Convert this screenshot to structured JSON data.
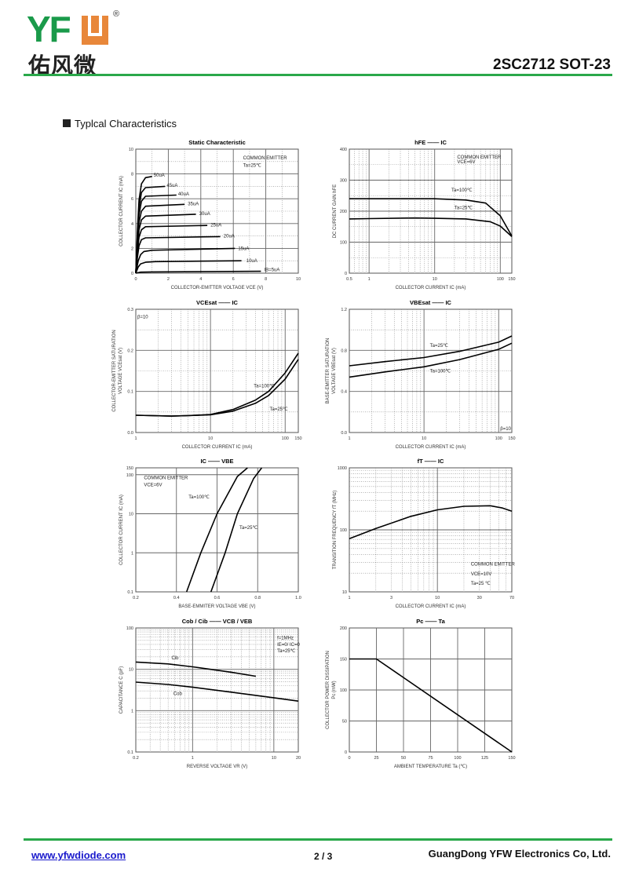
{
  "header": {
    "logo_latin": "YFW",
    "logo_chinese": "佑风微",
    "registered": "®",
    "part_number": "2SC2712 SOT-23"
  },
  "section_title": "Typlcal Characteristics",
  "footer": {
    "website": "www.yfwdiode.com",
    "page": "2 / 3",
    "company": "GuangDong YFW Electronics Co, Ltd."
  },
  "colors": {
    "brand_green": "#1a9a4a",
    "brand_orange": "#e8873a",
    "rule_green": "#2aa84a",
    "link": "#1a1acc"
  },
  "chart_data": [
    {
      "type": "line",
      "title": "Static Characteristic",
      "xlabel": "COLLECTOR-EMITTER VOLTAGE  VCE  (V)",
      "ylabel": [
        "COLLECTOR CURRENT  IC  (mA)"
      ],
      "xscale": "linear",
      "yscale": "linear",
      "xlim": [
        0,
        10
      ],
      "ylim": [
        0,
        10
      ],
      "minor": true,
      "xticks": [
        "0",
        "2",
        "4",
        "6",
        "8",
        "10"
      ],
      "yticks": [
        "0",
        "2",
        "4",
        "6",
        "8",
        "10"
      ],
      "notes": [
        {
          "text": "COMMON EMITTER",
          "x": 6.6,
          "y": 9.3
        },
        {
          "text": "Ta=25℃",
          "x": 6.6,
          "y": 8.7
        }
      ],
      "series": [
        {
          "name": "50uA",
          "label_at": [
            1.1,
            7.9
          ],
          "points": [
            [
              0,
              0
            ],
            [
              0.1,
              3.5
            ],
            [
              0.2,
              5.9
            ],
            [
              0.35,
              7.2
            ],
            [
              0.6,
              7.7
            ],
            [
              1.0,
              7.8
            ]
          ]
        },
        {
          "name": "45uA",
          "label_at": [
            1.9,
            7.1
          ],
          "points": [
            [
              0,
              0
            ],
            [
              0.1,
              3.2
            ],
            [
              0.2,
              5.3
            ],
            [
              0.35,
              6.5
            ],
            [
              0.6,
              6.9
            ],
            [
              1.8,
              7.0
            ]
          ]
        },
        {
          "name": "40uA",
          "label_at": [
            2.6,
            6.4
          ],
          "points": [
            [
              0,
              0
            ],
            [
              0.1,
              2.8
            ],
            [
              0.2,
              4.7
            ],
            [
              0.35,
              5.8
            ],
            [
              0.6,
              6.2
            ],
            [
              2.5,
              6.3
            ]
          ]
        },
        {
          "name": "35uA",
          "label_at": [
            3.2,
            5.6
          ],
          "points": [
            [
              0,
              0
            ],
            [
              0.1,
              2.5
            ],
            [
              0.2,
              4.1
            ],
            [
              0.35,
              5.0
            ],
            [
              0.6,
              5.4
            ],
            [
              3.0,
              5.55
            ]
          ]
        },
        {
          "name": "30uA",
          "label_at": [
            3.9,
            4.8
          ],
          "points": [
            [
              0,
              0
            ],
            [
              0.1,
              2.1
            ],
            [
              0.2,
              3.5
            ],
            [
              0.35,
              4.3
            ],
            [
              0.6,
              4.6
            ],
            [
              3.7,
              4.75
            ]
          ]
        },
        {
          "name": "25uA",
          "label_at": [
            4.6,
            3.9
          ],
          "points": [
            [
              0,
              0
            ],
            [
              0.1,
              1.7
            ],
            [
              0.2,
              2.9
            ],
            [
              0.35,
              3.5
            ],
            [
              0.6,
              3.75
            ],
            [
              4.4,
              3.85
            ]
          ]
        },
        {
          "name": "20uA",
          "label_at": [
            5.4,
            3.0
          ],
          "points": [
            [
              0,
              0
            ],
            [
              0.1,
              1.3
            ],
            [
              0.2,
              2.2
            ],
            [
              0.35,
              2.7
            ],
            [
              0.6,
              2.85
            ],
            [
              5.2,
              2.95
            ]
          ]
        },
        {
          "name": "15uA",
          "label_at": [
            6.3,
            2.0
          ],
          "points": [
            [
              0,
              0
            ],
            [
              0.15,
              1.0
            ],
            [
              0.3,
              1.5
            ],
            [
              0.5,
              1.75
            ],
            [
              1.0,
              1.85
            ],
            [
              6.1,
              2.0
            ]
          ]
        },
        {
          "name": "10uA",
          "label_at": [
            6.8,
            1.0
          ],
          "points": [
            [
              0,
              0
            ],
            [
              0.15,
              0.5
            ],
            [
              0.3,
              0.75
            ],
            [
              0.6,
              0.88
            ],
            [
              1.2,
              0.93
            ],
            [
              6.5,
              1.0
            ]
          ]
        },
        {
          "name": "IB=5uA",
          "label_at": [
            7.9,
            0.3
          ],
          "points": [
            [
              0,
              0
            ],
            [
              0.3,
              0.08
            ],
            [
              1,
              0.1
            ],
            [
              7.7,
              0.15
            ]
          ]
        }
      ]
    },
    {
      "type": "line",
      "title": "hFE —— IC",
      "xlabel": "COLLECTOR CURRENT  IC  (mA)",
      "ylabel": [
        "DC CURRENT GAIN  hFE"
      ],
      "xscale": "log",
      "yscale": "linear",
      "xlim": [
        0.5,
        150
      ],
      "ylim": [
        0,
        400
      ],
      "minor": true,
      "xticks": [
        "0.5",
        "1",
        "10",
        "100",
        "150"
      ],
      "yticks": [
        "0",
        "100",
        "200",
        "300",
        "400"
      ],
      "notes": [
        {
          "text": "COMMON EMITTER",
          "x": 22,
          "y": 375
        },
        {
          "text": "VCE=6V",
          "x": 22,
          "y": 360
        }
      ],
      "series": [
        {
          "name": "Ta=100℃",
          "label_at": [
            18,
            268
          ],
          "points": [
            [
              0.5,
              240
            ],
            [
              1,
              240
            ],
            [
              10,
              240
            ],
            [
              30,
              236
            ],
            [
              60,
              226
            ],
            [
              100,
              185
            ],
            [
              150,
              120
            ]
          ]
        },
        {
          "name": "Ta=25℃",
          "label_at": [
            20,
            212
          ],
          "points": [
            [
              0.5,
              175
            ],
            [
              1,
              176
            ],
            [
              5,
              178
            ],
            [
              10,
              177
            ],
            [
              30,
              175
            ],
            [
              70,
              166
            ],
            [
              100,
              152
            ],
            [
              150,
              118
            ]
          ]
        }
      ]
    },
    {
      "type": "line",
      "title": "VCEsat —— IC",
      "xlabel": "COLLECTOR CURRENT  IC  (mA)",
      "ylabel": [
        "COLLECTOR-EMITTER SATURATION",
        "VOLTAGE  VCEsat  (V)"
      ],
      "xscale": "log",
      "yscale": "linear",
      "xlim": [
        1,
        150
      ],
      "ylim": [
        0,
        0.3
      ],
      "minor": true,
      "xticks": [
        "1",
        "10",
        "100",
        "150"
      ],
      "yticks": [
        "0.0",
        "0.1",
        "0.2",
        "0.3"
      ],
      "notes": [
        {
          "text": "β=10",
          "x": 1.05,
          "y": 0.282
        }
      ],
      "series": [
        {
          "name": "Ta=100℃",
          "label_at": [
            38,
            0.114
          ],
          "points": [
            [
              1,
              0.042
            ],
            [
              3,
              0.04
            ],
            [
              5,
              0.041
            ],
            [
              10,
              0.044
            ],
            [
              20,
              0.056
            ],
            [
              40,
              0.079
            ],
            [
              60,
              0.1
            ],
            [
              100,
              0.145
            ],
            [
              150,
              0.193
            ]
          ]
        },
        {
          "name": "Ta=25℃",
          "label_at": [
            62,
            0.057
          ],
          "points": [
            [
              1,
              0.042
            ],
            [
              3,
              0.04
            ],
            [
              10,
              0.043
            ],
            [
              20,
              0.052
            ],
            [
              40,
              0.071
            ],
            [
              60,
              0.09
            ],
            [
              100,
              0.13
            ],
            [
              150,
              0.178
            ]
          ]
        }
      ]
    },
    {
      "type": "line",
      "title": "VBEsat —— IC",
      "xlabel": "COLLECTOR CURRENT  IC  (mA)",
      "ylabel": [
        "BASE-EMITTER SATURATION",
        "VOLTAGE  VBEsat  (V)"
      ],
      "xscale": "log",
      "yscale": "linear",
      "xlim": [
        1,
        150
      ],
      "ylim": [
        0,
        1.2
      ],
      "minor": true,
      "xticks": [
        "1",
        "10",
        "100",
        "150"
      ],
      "yticks": [
        "0.0",
        "0.4",
        "0.8",
        "1.2"
      ],
      "notes": [
        {
          "text": "β=10",
          "x": 105,
          "y": 0.04
        }
      ],
      "series": [
        {
          "name": "Ta=25℃",
          "label_at": [
            12,
            0.85
          ],
          "points": [
            [
              1,
              0.65
            ],
            [
              3,
              0.69
            ],
            [
              10,
              0.73
            ],
            [
              30,
              0.79
            ],
            [
              100,
              0.88
            ],
            [
              150,
              0.94
            ]
          ]
        },
        {
          "name": "Ta=100℃",
          "label_at": [
            12,
            0.6
          ],
          "points": [
            [
              1,
              0.54
            ],
            [
              3,
              0.59
            ],
            [
              10,
              0.64
            ],
            [
              30,
              0.71
            ],
            [
              100,
              0.81
            ],
            [
              150,
              0.87
            ]
          ]
        }
      ]
    },
    {
      "type": "line",
      "title": "IC —— VBE",
      "xlabel": "BASE-EMMITER VOLTAGE  VBE  (V)",
      "ylabel": [
        "COLLECTOR CURRENT  IC  (mA)"
      ],
      "xscale": "linear",
      "yscale": "log",
      "xlim": [
        0.2,
        1.0
      ],
      "ylim": [
        0.1,
        150
      ],
      "minor": false,
      "xticks": [
        "0.2",
        "0.4",
        "0.6",
        "0.8",
        "1.0"
      ],
      "yticks": [
        "0.1",
        "1",
        "10",
        "100",
        "150"
      ],
      "notes": [
        {
          "text": "COMMON EMITTER",
          "x": 0.24,
          "y": 85
        },
        {
          "text": "VCE=6V",
          "x": 0.24,
          "y": 55
        }
      ],
      "series": [
        {
          "name": "Ta=100℃",
          "label_at": [
            0.46,
            27
          ],
          "points": [
            [
              0.45,
              0.1
            ],
            [
              0.52,
              1
            ],
            [
              0.6,
              10
            ],
            [
              0.7,
              90
            ],
            [
              0.75,
              150
            ]
          ]
        },
        {
          "name": "Ta=25℃",
          "label_at": [
            0.71,
            4.5
          ],
          "points": [
            [
              0.57,
              0.1
            ],
            [
              0.64,
              1
            ],
            [
              0.7,
              10
            ],
            [
              0.78,
              80
            ],
            [
              0.82,
              150
            ]
          ]
        }
      ]
    },
    {
      "type": "line",
      "title": "fT —— IC",
      "xlabel": "COLLECTOR CURRENT  IC  (mA)",
      "ylabel": [
        "TRANSITION FREQUENCY  fT  (MHz)"
      ],
      "xscale": "log",
      "yscale": "log",
      "xlim": [
        1,
        70
      ],
      "ylim": [
        10,
        1000
      ],
      "minor": true,
      "xticks": [
        "1",
        "3",
        "10",
        "30",
        "70"
      ],
      "yticks": [
        "10",
        "100",
        "1000"
      ],
      "notes": [
        {
          "text": "COMMON EMITTER",
          "x": 24,
          "y": 28
        },
        {
          "text": "VCE=10V",
          "x": 24,
          "y": 19.5
        },
        {
          "text": "Ta=25 ℃",
          "x": 24,
          "y": 13.8
        }
      ],
      "series": [
        {
          "name": "fT",
          "points": [
            [
              1,
              72
            ],
            [
              2,
              105
            ],
            [
              5,
              165
            ],
            [
              10,
              210
            ],
            [
              20,
              240
            ],
            [
              40,
              245
            ],
            [
              55,
              225
            ],
            [
              70,
              200
            ]
          ]
        }
      ]
    },
    {
      "type": "line",
      "title": "Cob / Cib —— VCB / VEB",
      "xlabel": "REVERSE VOLTAGE  VR  (V)",
      "ylabel": [
        "CAPACITANCE  C  (pF)"
      ],
      "xscale": "log",
      "yscale": "log",
      "xlim": [
        0.2,
        20
      ],
      "ylim": [
        0.1,
        100
      ],
      "minor": true,
      "xticks": [
        "0.2",
        "1",
        "10",
        "20"
      ],
      "yticks": [
        "0.1",
        "1",
        "10",
        "100"
      ],
      "notes": [
        {
          "text": "f=1MHz",
          "x": 11,
          "y": 58
        },
        {
          "text": "IE=0/ IC=0",
          "x": 11,
          "y": 40
        },
        {
          "text": "Ta=25℃",
          "x": 11,
          "y": 28
        }
      ],
      "series": [
        {
          "name": "Cib",
          "label_at": [
            0.55,
            19
          ],
          "points": [
            [
              0.2,
              15
            ],
            [
              0.5,
              13.5
            ],
            [
              1,
              11.5
            ],
            [
              3,
              8.5
            ],
            [
              6,
              6.8
            ]
          ]
        },
        {
          "name": "Cob",
          "label_at": [
            0.58,
            2.6
          ],
          "points": [
            [
              0.2,
              4.9
            ],
            [
              0.5,
              4.3
            ],
            [
              1,
              3.7
            ],
            [
              3,
              2.8
            ],
            [
              10,
              2.05
            ],
            [
              20,
              1.7
            ]
          ]
        }
      ]
    },
    {
      "type": "line",
      "title": "Pc —— Ta",
      "xlabel": "AMBIENT TEMPERATURE  Ta  (℃)",
      "ylabel": [
        "COLLECTOR POWER DISSIPATION",
        "Pc  (mW)"
      ],
      "xscale": "linear",
      "yscale": "linear",
      "xlim": [
        0,
        150
      ],
      "ylim": [
        0,
        200
      ],
      "minor": false,
      "xticks": [
        "0",
        "25",
        "50",
        "75",
        "100",
        "125",
        "150"
      ],
      "yticks": [
        "0",
        "50",
        "100",
        "150",
        "200"
      ],
      "notes": [],
      "series": [
        {
          "name": "Pc",
          "points": [
            [
              0,
              150
            ],
            [
              25,
              150
            ],
            [
              150,
              0
            ]
          ]
        }
      ]
    }
  ]
}
